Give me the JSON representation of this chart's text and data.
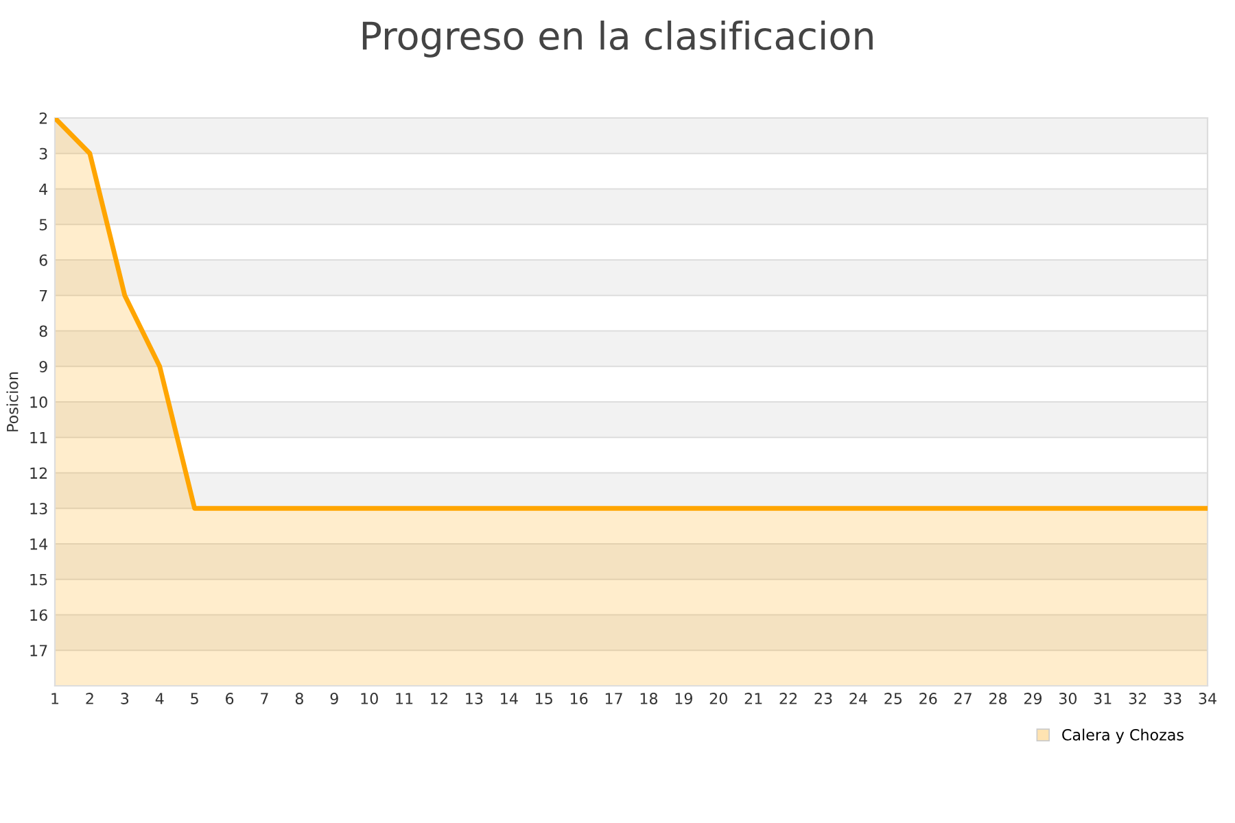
{
  "chart_data": {
    "type": "area",
    "title": "Progreso en la clasificacion",
    "ylabel": "Posicion",
    "x": [
      1,
      2,
      3,
      4,
      5,
      6,
      7,
      8,
      9,
      10,
      11,
      12,
      13,
      14,
      15,
      16,
      17,
      18,
      19,
      20,
      21,
      22,
      23,
      24,
      25,
      26,
      27,
      28,
      29,
      30,
      31,
      32,
      33,
      34
    ],
    "series": [
      {
        "name": "Calera y Chozas",
        "color": "#ffa500",
        "values": [
          2,
          3,
          7,
          9,
          13,
          13,
          13,
          13,
          13,
          13,
          13,
          13,
          13,
          13,
          13,
          13,
          13,
          13,
          13,
          13,
          13,
          13,
          13,
          13,
          13,
          13,
          13,
          13,
          13,
          13,
          13,
          13,
          13,
          13
        ]
      }
    ],
    "xlim": [
      1,
      34
    ],
    "xticks": [
      1,
      2,
      3,
      4,
      5,
      6,
      7,
      8,
      9,
      10,
      11,
      12,
      13,
      14,
      15,
      16,
      17,
      18,
      19,
      20,
      21,
      22,
      23,
      24,
      25,
      26,
      27,
      28,
      29,
      30,
      31,
      32,
      33,
      34
    ],
    "ylim": [
      18,
      2
    ],
    "yticks": [
      2,
      3,
      4,
      5,
      6,
      7,
      8,
      9,
      10,
      11,
      12,
      13,
      14,
      15,
      16,
      17,
      {
        "value": 18,
        "label": null
      }
    ],
    "bands": [
      {
        "axis": "y",
        "from": 2,
        "to": 3,
        "color": "#f2f2f2"
      },
      {
        "axis": "y",
        "from": 4,
        "to": 5,
        "color": "#f2f2f2"
      },
      {
        "axis": "y",
        "from": 6,
        "to": 7,
        "color": "#f2f2f2"
      },
      {
        "axis": "y",
        "from": 8,
        "to": 9,
        "color": "#f2f2f2"
      },
      {
        "axis": "y",
        "from": 10,
        "to": 11,
        "color": "#f2f2f2"
      },
      {
        "axis": "y",
        "from": 12,
        "to": 13,
        "color": "#f2f2f2"
      },
      {
        "axis": "y",
        "from": 14,
        "to": 15,
        "color": "#f2f2f2"
      },
      {
        "axis": "y",
        "from": 16,
        "to": 17,
        "color": "#f2f2f2"
      }
    ],
    "grid": "y",
    "legend": "bottom right",
    "marker": "none",
    "line_style": "solid"
  }
}
